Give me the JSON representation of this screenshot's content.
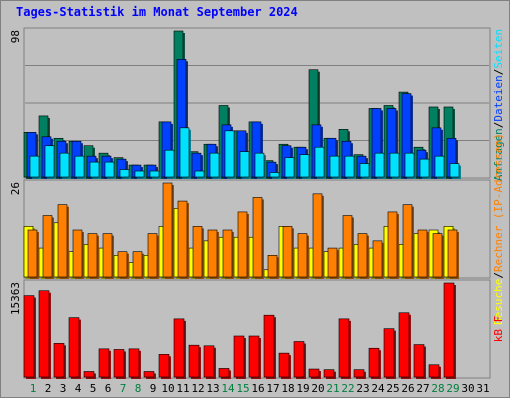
{
  "title": "Tages-Statistik im Monat September 2024",
  "colors": {
    "hits": "#008060",
    "files": "#0040ff",
    "pages": "#00e0ff",
    "visits": "#ffff00",
    "sites": "#ff8000",
    "kbytes": "#ff0000",
    "weekend": "#008040",
    "weekday": "#000000"
  },
  "chart_data": [
    {
      "type": "bar",
      "name": "hits-files-pages",
      "max_label": "98",
      "ylim": [
        0,
        98
      ],
      "legend": [
        {
          "text": "Anfragen",
          "color": "#008060"
        },
        {
          "text": "/",
          "color": "#000000"
        },
        {
          "text": "Dateien",
          "color": "#0040ff"
        },
        {
          "text": "/",
          "color": "#000000"
        },
        {
          "text": "Seiten",
          "color": "#00e0ff"
        }
      ],
      "categories": [
        "1",
        "2",
        "3",
        "4",
        "5",
        "6",
        "7",
        "8",
        "9",
        "10",
        "11",
        "12",
        "13",
        "14",
        "15",
        "16",
        "17",
        "18",
        "19",
        "20",
        "21",
        "22",
        "23",
        "24",
        "25",
        "26",
        "27",
        "28",
        "29",
        "30",
        "31"
      ],
      "series": [
        {
          "name": "Anfragen",
          "values": [
            30,
            41,
            26,
            24,
            21,
            16,
            13,
            8,
            8,
            37,
            98,
            17,
            22,
            48,
            31,
            37,
            11,
            22,
            20,
            72,
            26,
            32,
            15,
            46,
            48,
            57,
            20,
            47,
            47,
            0,
            0
          ]
        },
        {
          "name": "Dateien",
          "values": [
            30,
            27,
            24,
            24,
            14,
            14,
            12,
            8,
            8,
            37,
            79,
            16,
            22,
            35,
            31,
            37,
            10,
            21,
            20,
            35,
            26,
            24,
            14,
            46,
            46,
            56,
            18,
            33,
            26,
            0,
            0
          ]
        },
        {
          "name": "Seiten",
          "values": [
            14,
            21,
            16,
            14,
            10,
            10,
            5,
            4,
            4,
            18,
            33,
            4,
            16,
            31,
            17,
            16,
            3,
            13,
            15,
            20,
            14,
            14,
            9,
            16,
            16,
            16,
            12,
            14,
            9,
            0,
            0
          ]
        }
      ]
    },
    {
      "type": "bar",
      "name": "visits-sites",
      "max_label": "26",
      "ylim": [
        0,
        26
      ],
      "legend": [
        {
          "text": "Besuche",
          "color": "#ffff00"
        },
        {
          "text": "/",
          "color": "#000000"
        },
        {
          "text": "Rechner (IP-Adressen)",
          "color": "#ff8000"
        }
      ],
      "categories": [
        "1",
        "2",
        "3",
        "4",
        "5",
        "6",
        "7",
        "8",
        "9",
        "10",
        "11",
        "12",
        "13",
        "14",
        "15",
        "16",
        "17",
        "18",
        "19",
        "20",
        "21",
        "22",
        "23",
        "24",
        "25",
        "26",
        "27",
        "28",
        "29",
        "30",
        "31"
      ],
      "series": [
        {
          "name": "Besuche",
          "values": [
            14,
            8,
            15,
            7,
            9,
            8,
            6,
            4,
            6,
            14,
            19,
            8,
            10,
            11,
            11,
            11,
            2,
            14,
            8,
            8,
            7,
            8,
            9,
            8,
            14,
            9,
            12,
            13,
            14,
            0,
            0
          ]
        },
        {
          "name": "Rechner (IP-Adressen)",
          "values": [
            13,
            17,
            20,
            13,
            12,
            12,
            7,
            7,
            12,
            26,
            21,
            14,
            13,
            13,
            18,
            22,
            6,
            14,
            12,
            23,
            8,
            17,
            12,
            10,
            18,
            20,
            13,
            12,
            13,
            0,
            0
          ]
        }
      ]
    },
    {
      "type": "bar",
      "name": "kbytes",
      "max_label": "15363",
      "ylim": [
        0,
        15363
      ],
      "legend": [
        {
          "text": "kB F",
          "color": "#ff0000"
        }
      ],
      "categories": [
        "1",
        "2",
        "3",
        "4",
        "5",
        "6",
        "7",
        "8",
        "9",
        "10",
        "11",
        "12",
        "13",
        "14",
        "15",
        "16",
        "17",
        "18",
        "19",
        "20",
        "21",
        "22",
        "23",
        "24",
        "25",
        "26",
        "27",
        "28",
        "29",
        "30",
        "31"
      ],
      "series": [
        {
          "name": "kB F",
          "values": [
            13300,
            14100,
            5500,
            9700,
            900,
            4600,
            4500,
            4600,
            900,
            3700,
            9500,
            5200,
            5100,
            1400,
            6700,
            6700,
            10100,
            3900,
            5800,
            1300,
            1200,
            9500,
            1200,
            4700,
            7900,
            10500,
            5300,
            2000,
            15363,
            0,
            0
          ]
        }
      ]
    }
  ],
  "days": [
    {
      "label": "1",
      "weekend": true
    },
    {
      "label": "2",
      "weekend": false
    },
    {
      "label": "3",
      "weekend": false
    },
    {
      "label": "4",
      "weekend": false
    },
    {
      "label": "5",
      "weekend": false
    },
    {
      "label": "6",
      "weekend": false
    },
    {
      "label": "7",
      "weekend": true
    },
    {
      "label": "8",
      "weekend": true
    },
    {
      "label": "9",
      "weekend": false
    },
    {
      "label": "10",
      "weekend": false
    },
    {
      "label": "11",
      "weekend": false
    },
    {
      "label": "12",
      "weekend": false
    },
    {
      "label": "13",
      "weekend": false
    },
    {
      "label": "14",
      "weekend": true
    },
    {
      "label": "15",
      "weekend": true
    },
    {
      "label": "16",
      "weekend": false
    },
    {
      "label": "17",
      "weekend": false
    },
    {
      "label": "18",
      "weekend": false
    },
    {
      "label": "19",
      "weekend": false
    },
    {
      "label": "20",
      "weekend": false
    },
    {
      "label": "21",
      "weekend": true
    },
    {
      "label": "22",
      "weekend": true
    },
    {
      "label": "23",
      "weekend": false
    },
    {
      "label": "24",
      "weekend": false
    },
    {
      "label": "25",
      "weekend": false
    },
    {
      "label": "26",
      "weekend": false
    },
    {
      "label": "27",
      "weekend": false
    },
    {
      "label": "28",
      "weekend": true
    },
    {
      "label": "29",
      "weekend": true
    },
    {
      "label": "30",
      "weekend": false
    },
    {
      "label": "31",
      "weekend": false
    }
  ]
}
